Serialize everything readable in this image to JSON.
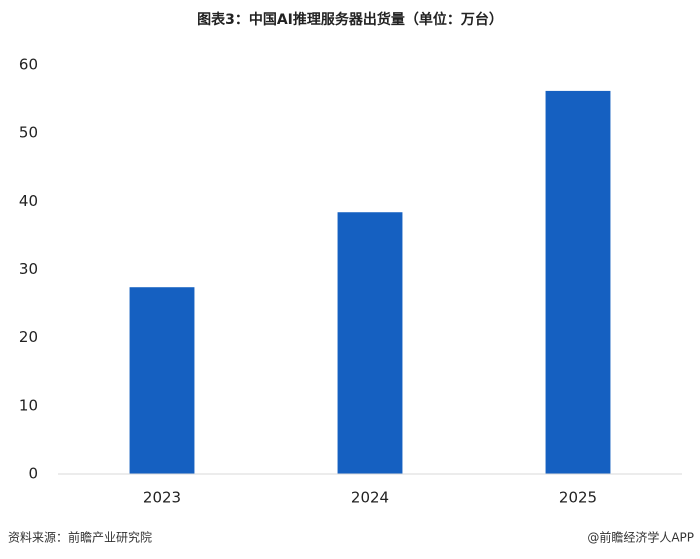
{
  "chart_data": {
    "type": "bar",
    "title": "图表3：中国AI推理服务器出货量（单位：万台）",
    "categories": [
      "2023",
      "2024",
      "2025"
    ],
    "values": [
      27.4,
      38.4,
      56.2
    ],
    "color": "#1560c1",
    "ylim": [
      0,
      60
    ],
    "yticks": [
      0,
      10,
      20,
      30,
      40,
      50,
      60
    ],
    "grid": false,
    "source": "资料来源：前瞻产业研究院",
    "credit": "@前瞻经济学人APP"
  }
}
